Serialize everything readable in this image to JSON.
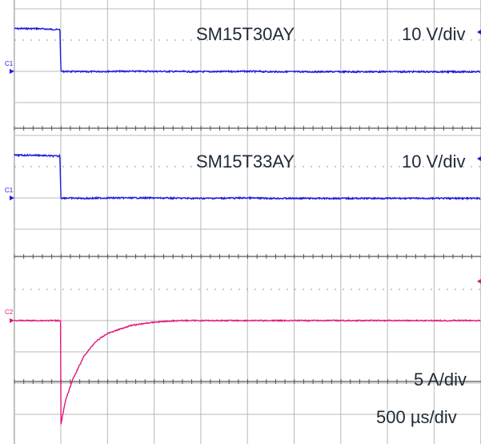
{
  "chart_data": {
    "type": "line",
    "panels": [
      {
        "trace_id": "C1",
        "trace_label": "SM15T30AY",
        "scale_label": "10 V/div",
        "color": "#1a1adf",
        "x": [
          -0.5,
          -0.05,
          -0.02,
          0,
          0.5,
          1,
          2,
          3,
          4,
          4.5
        ],
        "y": [
          2.05,
          2.0,
          2.05,
          0.0,
          -0.02,
          0.0,
          0.0,
          -0.02,
          0.0,
          -0.02
        ]
      },
      {
        "trace_id": "C1",
        "trace_label": "SM15T33AY",
        "scale_label": "10 V/div",
        "color": "#1a1adf",
        "x": [
          -0.5,
          -0.05,
          -0.02,
          0,
          0.5,
          1,
          2,
          3,
          4,
          4.5
        ],
        "y": [
          2.05,
          2.0,
          2.05,
          0.0,
          -0.02,
          0.0,
          0.0,
          -0.02,
          0.0,
          -0.02
        ]
      },
      {
        "trace_id": "C2",
        "trace_label": "",
        "scale_label": "5 A/div",
        "color": "#e0187a",
        "x": [
          -0.5,
          -0.02,
          0.0,
          0.001,
          0.1,
          0.25,
          0.5,
          0.75,
          1.0,
          1.5,
          2.0,
          2.5,
          3.0,
          3.5,
          4.0,
          4.5
        ],
        "y": [
          0.0,
          0.0,
          0.0,
          -6.5,
          -5.0,
          -3.7,
          -2.2,
          -1.3,
          -0.8,
          -0.3,
          -0.1,
          0.0,
          0.0,
          0.0,
          0.0,
          0.0
        ]
      }
    ],
    "time_scale_label": "500 µs/div",
    "xlabel": "",
    "ylabel": "",
    "grid": true
  }
}
